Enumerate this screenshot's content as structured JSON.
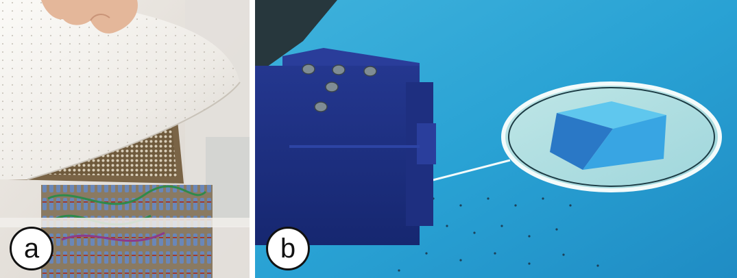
{
  "figure": {
    "panels": [
      {
        "id": "a",
        "label": "a",
        "content": "hand-lifting-perforated-paper-over-pin-board"
      },
      {
        "id": "b",
        "label": "b",
        "content": "tangible-cube-on-tabletop-display-with-callout"
      }
    ]
  },
  "colors": {
    "tabletop_blue": "#2c9fd0",
    "cube_navy": "#1b2f86",
    "paper_white": "#f4f2ee",
    "badge_border": "#111111"
  }
}
